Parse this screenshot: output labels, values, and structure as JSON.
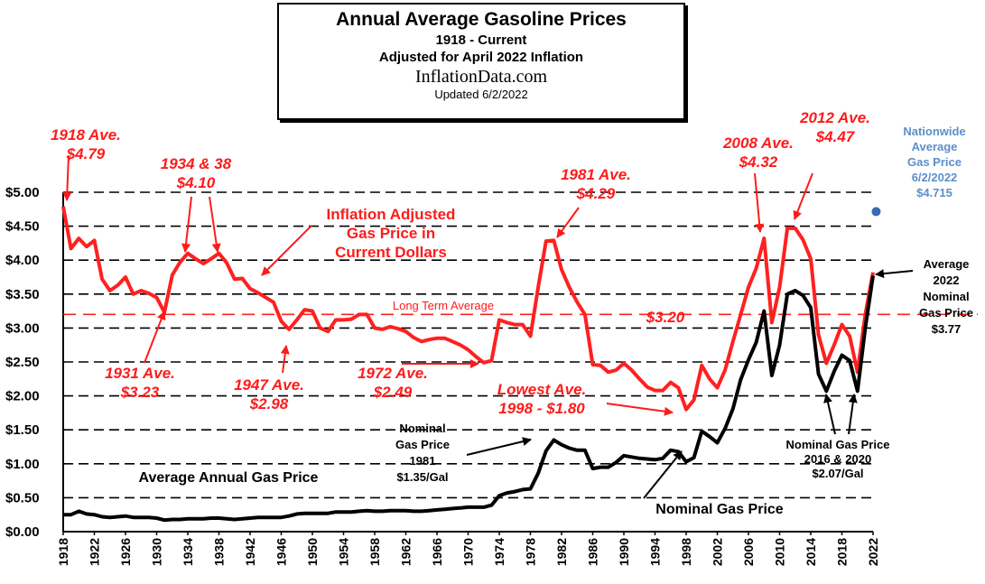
{
  "title_block": {
    "title": "Annual Average Gasoline Prices",
    "subtitle1": "1918 - Current",
    "subtitle2": "Adjusted for April 2022 Inflation",
    "site": "InflationData.com",
    "updated": "Updated  6/2/2022"
  },
  "chart_data": {
    "type": "line",
    "title": "Annual Average Gasoline Prices",
    "xlim": [
      1918,
      2022
    ],
    "ylim": [
      0,
      5
    ],
    "grid": "horizontal dashed",
    "y_ticks": [
      0,
      0.5,
      1,
      1.5,
      2,
      2.5,
      3,
      3.5,
      4,
      4.5,
      5
    ],
    "y_tick_labels": [
      "$0.00",
      "$0.50",
      "$1.00",
      "$1.50",
      "$2.00",
      "$2.50",
      "$3.00",
      "$3.50",
      "$4.00",
      "$4.50",
      "$5.00"
    ],
    "x_ticks": [
      1918,
      1922,
      1926,
      1930,
      1934,
      1938,
      1942,
      1946,
      1950,
      1954,
      1958,
      1962,
      1966,
      1970,
      1974,
      1978,
      1982,
      1986,
      1990,
      1994,
      1998,
      2002,
      2006,
      2010,
      2014,
      2018,
      2022
    ],
    "x_tick_labels": [
      "1918",
      "1922",
      "1926",
      "1930",
      "1934",
      "1938",
      "1942",
      "1946",
      "1950",
      "1954",
      "1958",
      "1962",
      "1966",
      "1970",
      "1974",
      "1978",
      "1982",
      "1986",
      "1990",
      "1994",
      "1998",
      "2002",
      "2006",
      "2010",
      "2014",
      "2018",
      "2022"
    ],
    "colors": {
      "inflation_adjusted": "#ff2020",
      "nominal": "#000000",
      "current": "#3a6ab3",
      "long_term_average": "#ff2020"
    },
    "long_term_average": {
      "value": 3.2,
      "label": "Long Term Average",
      "value_label": "$3.20"
    },
    "current_point": {
      "x": 2022.4,
      "y": 4.715
    },
    "series": [
      {
        "key": "adjusted",
        "points": [
          [
            1918,
            4.79
          ],
          [
            1919,
            4.17
          ],
          [
            1920,
            4.32
          ],
          [
            1921,
            4.2
          ],
          [
            1922,
            4.29
          ],
          [
            1923,
            3.72
          ],
          [
            1924,
            3.55
          ],
          [
            1925,
            3.63
          ],
          [
            1926,
            3.75
          ],
          [
            1927,
            3.5
          ],
          [
            1928,
            3.55
          ],
          [
            1929,
            3.51
          ],
          [
            1930,
            3.45
          ],
          [
            1931,
            3.23
          ],
          [
            1932,
            3.78
          ],
          [
            1933,
            3.97
          ],
          [
            1934,
            4.1
          ],
          [
            1935,
            4.02
          ],
          [
            1936,
            3.95
          ],
          [
            1937,
            4.02
          ],
          [
            1938,
            4.1
          ],
          [
            1939,
            3.96
          ],
          [
            1940,
            3.72
          ],
          [
            1941,
            3.73
          ],
          [
            1942,
            3.58
          ],
          [
            1943,
            3.52
          ],
          [
            1944,
            3.45
          ],
          [
            1945,
            3.38
          ],
          [
            1946,
            3.1
          ],
          [
            1947,
            2.98
          ],
          [
            1948,
            3.12
          ],
          [
            1949,
            3.27
          ],
          [
            1950,
            3.25
          ],
          [
            1951,
            3.0
          ],
          [
            1952,
            2.95
          ],
          [
            1953,
            3.12
          ],
          [
            1954,
            3.12
          ],
          [
            1955,
            3.13
          ],
          [
            1956,
            3.2
          ],
          [
            1957,
            3.2
          ],
          [
            1958,
            3.0
          ],
          [
            1959,
            2.98
          ],
          [
            1960,
            3.02
          ],
          [
            1961,
            2.99
          ],
          [
            1962,
            2.95
          ],
          [
            1963,
            2.86
          ],
          [
            1964,
            2.8
          ],
          [
            1965,
            2.83
          ],
          [
            1966,
            2.85
          ],
          [
            1967,
            2.85
          ],
          [
            1968,
            2.8
          ],
          [
            1969,
            2.75
          ],
          [
            1970,
            2.68
          ],
          [
            1971,
            2.58
          ],
          [
            1972,
            2.49
          ],
          [
            1973,
            2.52
          ],
          [
            1974,
            3.12
          ],
          [
            1975,
            3.08
          ],
          [
            1976,
            3.05
          ],
          [
            1977,
            3.05
          ],
          [
            1978,
            2.88
          ],
          [
            1979,
            3.6
          ],
          [
            1980,
            4.28
          ],
          [
            1981,
            4.29
          ],
          [
            1982,
            3.86
          ],
          [
            1983,
            3.6
          ],
          [
            1984,
            3.38
          ],
          [
            1985,
            3.2
          ],
          [
            1986,
            2.46
          ],
          [
            1987,
            2.45
          ],
          [
            1988,
            2.35
          ],
          [
            1989,
            2.38
          ],
          [
            1990,
            2.48
          ],
          [
            1991,
            2.38
          ],
          [
            1992,
            2.25
          ],
          [
            1993,
            2.13
          ],
          [
            1994,
            2.08
          ],
          [
            1995,
            2.08
          ],
          [
            1996,
            2.2
          ],
          [
            1997,
            2.12
          ],
          [
            1998,
            1.8
          ],
          [
            1999,
            1.94
          ],
          [
            2000,
            2.45
          ],
          [
            2001,
            2.25
          ],
          [
            2002,
            2.12
          ],
          [
            2003,
            2.38
          ],
          [
            2004,
            2.8
          ],
          [
            2005,
            3.2
          ],
          [
            2006,
            3.6
          ],
          [
            2007,
            3.88
          ],
          [
            2008,
            4.32
          ],
          [
            2009,
            3.08
          ],
          [
            2010,
            3.6
          ],
          [
            2011,
            4.47
          ],
          [
            2012,
            4.47
          ],
          [
            2013,
            4.3
          ],
          [
            2014,
            4.02
          ],
          [
            2015,
            2.9
          ],
          [
            2016,
            2.48
          ],
          [
            2017,
            2.75
          ],
          [
            2018,
            3.05
          ],
          [
            2019,
            2.88
          ],
          [
            2020,
            2.35
          ],
          [
            2021,
            3.2
          ],
          [
            2022,
            3.82
          ]
        ]
      },
      {
        "key": "nominal",
        "points": [
          [
            1918,
            0.25
          ],
          [
            1919,
            0.25
          ],
          [
            1920,
            0.3
          ],
          [
            1921,
            0.26
          ],
          [
            1922,
            0.25
          ],
          [
            1923,
            0.22
          ],
          [
            1924,
            0.21
          ],
          [
            1925,
            0.22
          ],
          [
            1926,
            0.23
          ],
          [
            1927,
            0.21
          ],
          [
            1928,
            0.21
          ],
          [
            1929,
            0.21
          ],
          [
            1930,
            0.2
          ],
          [
            1931,
            0.17
          ],
          [
            1932,
            0.18
          ],
          [
            1933,
            0.18
          ],
          [
            1934,
            0.19
          ],
          [
            1935,
            0.19
          ],
          [
            1936,
            0.19
          ],
          [
            1937,
            0.2
          ],
          [
            1938,
            0.2
          ],
          [
            1939,
            0.19
          ],
          [
            1940,
            0.18
          ],
          [
            1941,
            0.19
          ],
          [
            1942,
            0.2
          ],
          [
            1943,
            0.21
          ],
          [
            1944,
            0.21
          ],
          [
            1945,
            0.21
          ],
          [
            1946,
            0.21
          ],
          [
            1947,
            0.23
          ],
          [
            1948,
            0.26
          ],
          [
            1949,
            0.27
          ],
          [
            1950,
            0.27
          ],
          [
            1951,
            0.27
          ],
          [
            1952,
            0.27
          ],
          [
            1953,
            0.29
          ],
          [
            1954,
            0.29
          ],
          [
            1955,
            0.29
          ],
          [
            1956,
            0.3
          ],
          [
            1957,
            0.31
          ],
          [
            1958,
            0.3
          ],
          [
            1959,
            0.3
          ],
          [
            1960,
            0.31
          ],
          [
            1961,
            0.31
          ],
          [
            1962,
            0.31
          ],
          [
            1963,
            0.3
          ],
          [
            1964,
            0.3
          ],
          [
            1965,
            0.31
          ],
          [
            1966,
            0.32
          ],
          [
            1967,
            0.33
          ],
          [
            1968,
            0.34
          ],
          [
            1969,
            0.35
          ],
          [
            1970,
            0.36
          ],
          [
            1971,
            0.36
          ],
          [
            1972,
            0.36
          ],
          [
            1973,
            0.39
          ],
          [
            1974,
            0.53
          ],
          [
            1975,
            0.57
          ],
          [
            1976,
            0.59
          ],
          [
            1977,
            0.62
          ],
          [
            1978,
            0.63
          ],
          [
            1979,
            0.86
          ],
          [
            1980,
            1.19
          ],
          [
            1981,
            1.35
          ],
          [
            1982,
            1.28
          ],
          [
            1983,
            1.23
          ],
          [
            1984,
            1.2
          ],
          [
            1985,
            1.2
          ],
          [
            1986,
            0.93
          ],
          [
            1987,
            0.95
          ],
          [
            1988,
            0.95
          ],
          [
            1989,
            1.02
          ],
          [
            1990,
            1.12
          ],
          [
            1991,
            1.1
          ],
          [
            1992,
            1.08
          ],
          [
            1993,
            1.07
          ],
          [
            1994,
            1.06
          ],
          [
            1995,
            1.08
          ],
          [
            1996,
            1.2
          ],
          [
            1997,
            1.18
          ],
          [
            1998,
            1.03
          ],
          [
            1999,
            1.09
          ],
          [
            2000,
            1.48
          ],
          [
            2001,
            1.4
          ],
          [
            2002,
            1.31
          ],
          [
            2003,
            1.52
          ],
          [
            2004,
            1.81
          ],
          [
            2005,
            2.24
          ],
          [
            2006,
            2.53
          ],
          [
            2007,
            2.79
          ],
          [
            2008,
            3.25
          ],
          [
            2009,
            2.3
          ],
          [
            2010,
            2.75
          ],
          [
            2011,
            3.5
          ],
          [
            2012,
            3.55
          ],
          [
            2013,
            3.48
          ],
          [
            2014,
            3.3
          ],
          [
            2015,
            2.32
          ],
          [
            2016,
            2.07
          ],
          [
            2017,
            2.36
          ],
          [
            2018,
            2.6
          ],
          [
            2019,
            2.52
          ],
          [
            2020,
            2.07
          ],
          [
            2021,
            3.0
          ],
          [
            2022,
            3.77
          ]
        ]
      }
    ]
  },
  "annotations": {
    "a1918": [
      "1918 Ave.",
      "$4.79"
    ],
    "a1934": [
      "1934 & 38",
      "$4.10"
    ],
    "a_infl": [
      "Inflation Adjusted",
      "Gas Price in",
      "Current Dollars"
    ],
    "a1981": [
      "1981 Ave.",
      "$4.29"
    ],
    "a2008": [
      "2008 Ave.",
      "$4.32"
    ],
    "a2012": [
      "2012 Ave.",
      "$4.47"
    ],
    "a_nationwide": [
      "Nationwide",
      "Average",
      "Gas Price",
      "6/2/2022",
      "$4.715"
    ],
    "a_avg2022": [
      "Average",
      "2022",
      "Nominal",
      "Gas Price",
      "$3.77"
    ],
    "a1931": [
      "1931 Ave.",
      "$3.23"
    ],
    "a1947": [
      "1947 Ave.",
      "$2.98"
    ],
    "a1972": [
      "1972 Ave.",
      "$2.49"
    ],
    "a_lowest": [
      "Lowest  Ave.",
      "1998 - $1.80"
    ],
    "a_nom1981": [
      "Nominal",
      "Gas Price",
      "1981",
      "$1.35/Gal"
    ],
    "a_avgannual": [
      "Average Annual Gas Price"
    ],
    "a_nominal": [
      "Nominal Gas Price"
    ],
    "a_nom2016": [
      "Nominal Gas Price",
      "2016 & 2020",
      "$2.07/Gal"
    ]
  }
}
